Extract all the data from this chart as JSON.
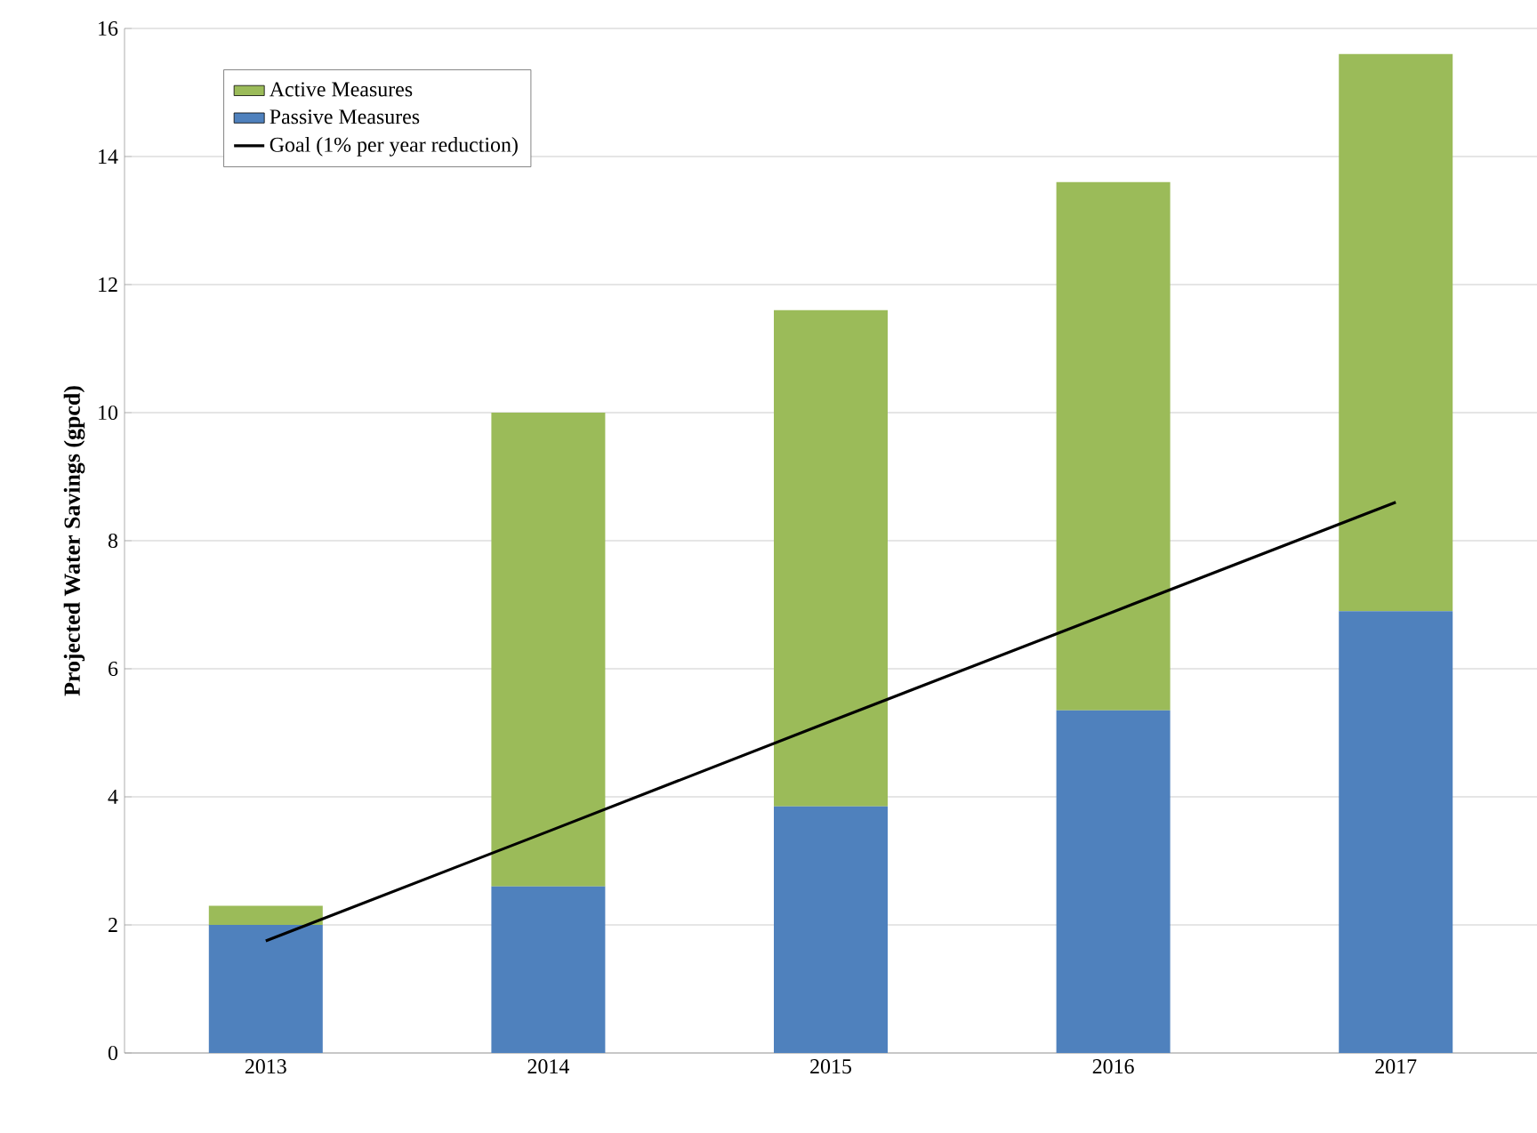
{
  "chart_data": {
    "type": "bar",
    "stacked": true,
    "ylabel": "Projected Water Savings (gpcd)",
    "categories": [
      "2013",
      "2014",
      "2015",
      "2016",
      "2017"
    ],
    "series": [
      {
        "name": "Passive Measures",
        "color": "#4f81bd",
        "values": [
          2.0,
          2.6,
          3.85,
          5.35,
          6.9
        ]
      },
      {
        "name": "Active Measures",
        "color": "#9bbb59",
        "values": [
          0.3,
          7.4,
          7.75,
          8.25,
          8.7
        ]
      },
      {
        "name": "Goal (1% per year reduction)",
        "type": "line",
        "color": "#000000",
        "values": [
          1.75,
          3.46,
          5.18,
          6.89,
          8.6
        ]
      }
    ],
    "ylim": [
      0,
      16
    ],
    "yticks": [
      0,
      2,
      4,
      6,
      8,
      10,
      12,
      14,
      16
    ],
    "grid": "y",
    "legend": "top left",
    "marker": "none",
    "line_style": "solid"
  }
}
